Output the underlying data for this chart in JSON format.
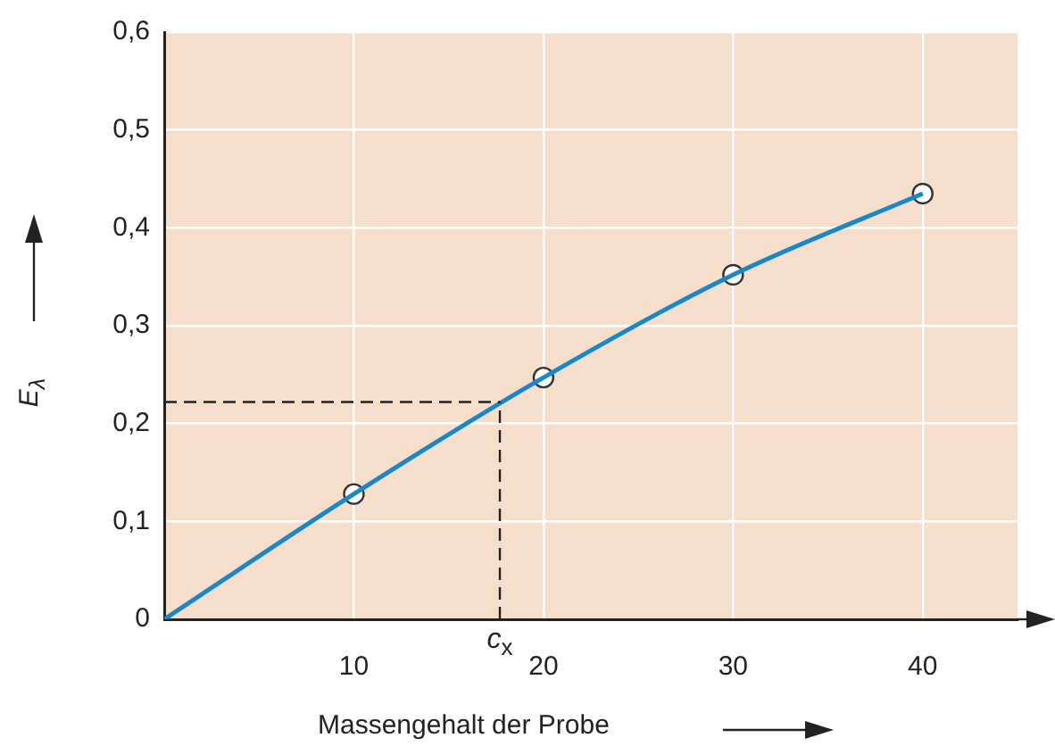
{
  "chart_data": {
    "type": "line",
    "xlabel": "Massengehalt der Probe",
    "ylabel": "E$_{λ}$",
    "xlim": [
      0,
      45
    ],
    "xticks": [
      10,
      20,
      30,
      40
    ],
    "ylim": [
      0,
      0.6
    ],
    "yticks": [
      {
        "value": 0,
        "label": "0"
      },
      {
        "value": 0.1,
        "label": "0,1"
      },
      {
        "value": 0.2,
        "label": "0,2"
      },
      {
        "value": 0.3,
        "label": "0,3"
      },
      {
        "value": 0.4,
        "label": "0,4"
      },
      {
        "value": 0.5,
        "label": "0,5"
      },
      {
        "value": 0.6,
        "label": "0,6"
      }
    ],
    "grid": true,
    "series": [
      {
        "x": [
          0,
          10,
          20,
          30,
          40
        ],
        "values": [
          0,
          0.128,
          0.247,
          0.352,
          0.435
        ],
        "color": "#1a87c9",
        "marker": "none",
        "line_style": "solid"
      },
      {
        "type": "scatter",
        "x": [
          10,
          20,
          30,
          40
        ],
        "values": [
          0.128,
          0.247,
          0.352,
          0.435
        ],
        "color": "#ffffff",
        "marker": "circle"
      }
    ],
    "ref_lines": [
      {
        "axis": "y",
        "value": 0.222,
        "line_style": "dashed"
      },
      {
        "axis": "x",
        "value": 17.7,
        "line_style": "dashed"
      }
    ],
    "annotations": [
      {
        "text": "c$_{x}$",
        "x": 17.7,
        "y": 0
      }
    ]
  }
}
